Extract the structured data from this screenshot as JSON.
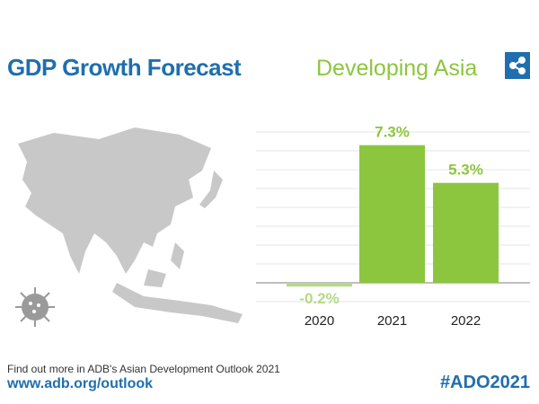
{
  "header": {
    "title": "GDP Growth Forecast",
    "region": "Developing Asia"
  },
  "footer": {
    "text": "Find out more in ADB's Asian Development Outlook 2021",
    "url": "www.adb.org/outlook",
    "hashtag": "#ADO2021"
  },
  "icons": {
    "share": "share-icon",
    "map": "asia-map",
    "virus": "virus-icon"
  },
  "colors": {
    "blue": "#1f6fae",
    "green": "#8cc63f",
    "negative": "#b5d98a",
    "map": "#c8c8c8"
  },
  "chart_data": {
    "type": "bar",
    "categories": [
      "2020",
      "2021",
      "2022"
    ],
    "values": [
      -0.2,
      7.3,
      5.3
    ],
    "data_labels": [
      "-0.2%",
      "7.3%",
      "5.3%"
    ],
    "ylim": [
      -1,
      8
    ],
    "grid": true
  }
}
